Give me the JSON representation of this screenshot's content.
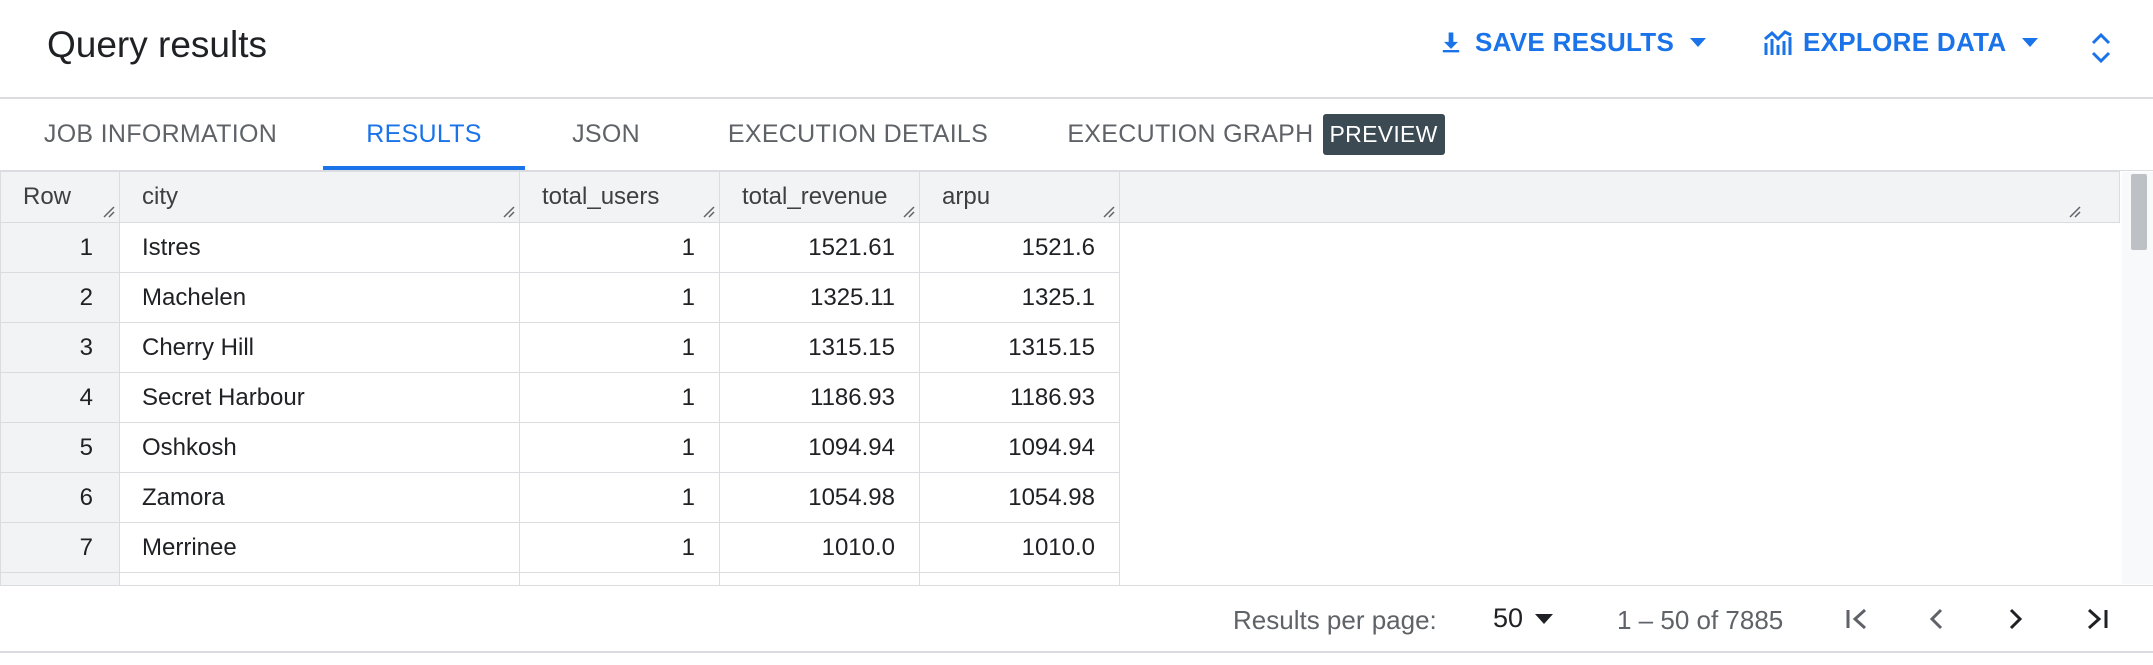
{
  "header": {
    "title": "Query results",
    "save_results_label": "SAVE RESULTS",
    "explore_data_label": "EXPLORE DATA"
  },
  "tabs": [
    {
      "label": "JOB INFORMATION",
      "active": false
    },
    {
      "label": "RESULTS",
      "active": true
    },
    {
      "label": "JSON",
      "active": false
    },
    {
      "label": "EXECUTION DETAILS",
      "active": false
    },
    {
      "label": "EXECUTION GRAPH",
      "active": false,
      "badge": "PREVIEW"
    }
  ],
  "table": {
    "columns": [
      "Row",
      "city",
      "total_users",
      "total_revenue",
      "arpu"
    ],
    "rows": [
      [
        "1",
        "Istres",
        "1",
        "1521.61",
        "1521.6"
      ],
      [
        "2",
        "Machelen",
        "1",
        "1325.11",
        "1325.1"
      ],
      [
        "3",
        "Cherry Hill",
        "1",
        "1315.15",
        "1315.15"
      ],
      [
        "4",
        "Secret Harbour",
        "1",
        "1186.93",
        "1186.93"
      ],
      [
        "5",
        "Oshkosh",
        "1",
        "1094.94",
        "1094.94"
      ],
      [
        "6",
        "Zamora",
        "1",
        "1054.98",
        "1054.98"
      ],
      [
        "7",
        "Merrinee",
        "1",
        "1010.0",
        "1010.0"
      ],
      [
        "",
        "",
        "",
        "",
        ""
      ]
    ]
  },
  "footer": {
    "results_per_page_label": "Results per page:",
    "results_per_page_value": "50",
    "range_text": "1 – 50 of 7885"
  },
  "colors": {
    "accent": "#1a73e8",
    "header_bg": "#f1f3f4",
    "border": "#dadce0",
    "badge_bg": "#3c4a53"
  }
}
